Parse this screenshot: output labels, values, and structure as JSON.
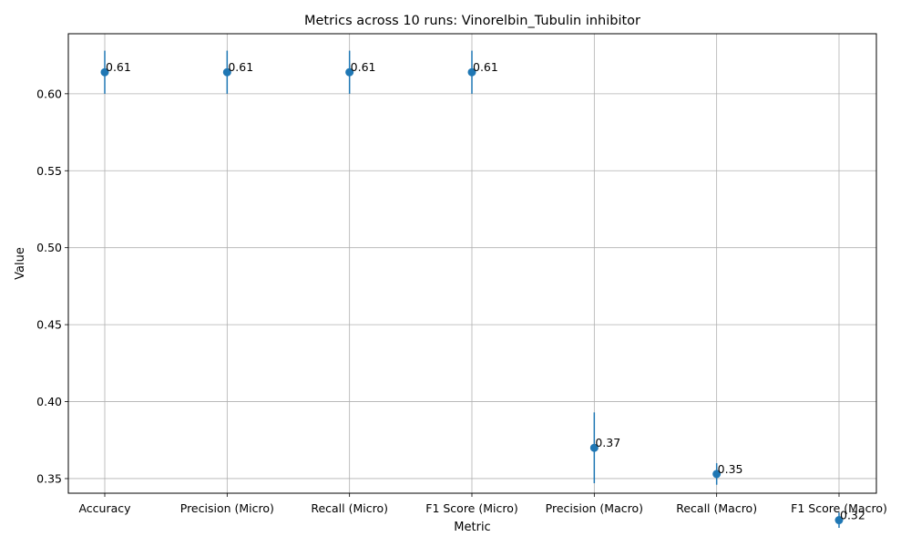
{
  "chart_data": {
    "type": "scatter",
    "title": "Metrics across 10 runs: Vinorelbin_Tubulin inhibitor",
    "xlabel": "Metric",
    "ylabel": "Value",
    "categories": [
      "Accuracy",
      "Precision (Micro)",
      "Recall (Micro)",
      "F1 Score (Micro)",
      "Precision (Macro)",
      "Recall (Macro)",
      "F1 Score (Macro)"
    ],
    "values": [
      0.614,
      0.614,
      0.614,
      0.614,
      0.37,
      0.353,
      0.323
    ],
    "errors": [
      0.014,
      0.014,
      0.014,
      0.014,
      0.023,
      0.007,
      0.005
    ],
    "labels": [
      "0.61",
      "0.61",
      "0.61",
      "0.61",
      "0.37",
      "0.35",
      "0.32"
    ],
    "yticks": [
      "0.35",
      "0.40",
      "0.45",
      "0.50",
      "0.55",
      "0.60"
    ],
    "ylim": [
      0.3405,
      0.639
    ],
    "grid": true,
    "legend": "none",
    "colors": {
      "marker": "#1f77b4",
      "grid": "#b0b0b0",
      "axis": "#000000"
    }
  }
}
